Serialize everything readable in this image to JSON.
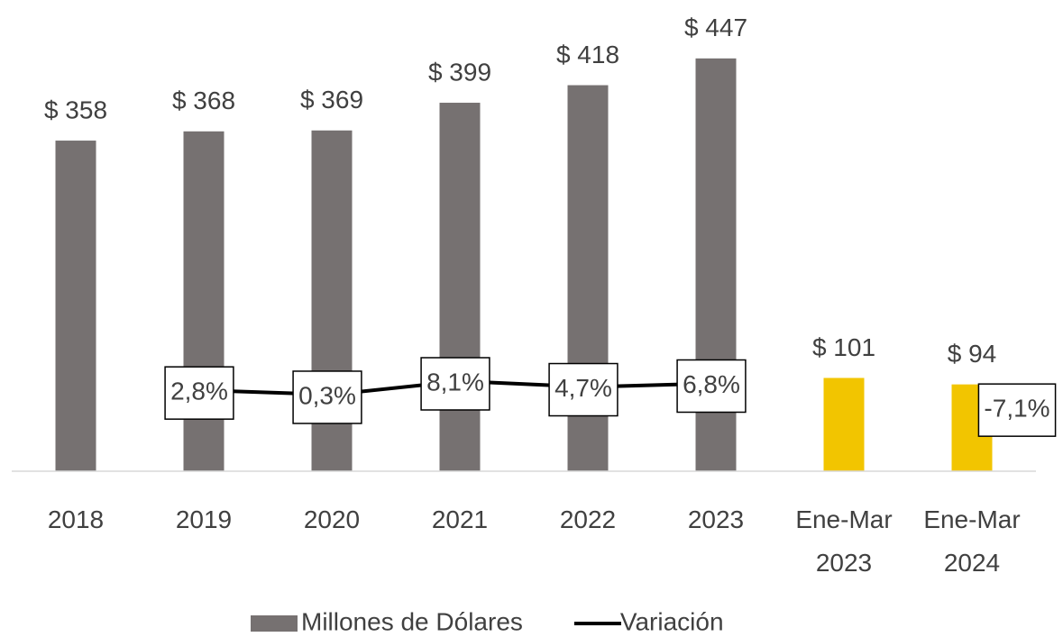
{
  "chart_data": {
    "type": "bar",
    "categories": [
      "2018",
      "2019",
      "2020",
      "2021",
      "2022",
      "2023",
      "Ene-Mar 2023",
      "Ene-Mar 2024"
    ],
    "series": [
      {
        "name": "Millones de Dólares",
        "color": "#767171",
        "colors": [
          "#767171",
          "#767171",
          "#767171",
          "#767171",
          "#767171",
          "#767171",
          "#f2c500",
          "#f2c500"
        ],
        "values": [
          358,
          368,
          369,
          399,
          418,
          447,
          101,
          94
        ],
        "value_labels": [
          "$ 358",
          "$ 368",
          "$ 369",
          "$ 399",
          "$ 418",
          "$ 447",
          "$ 101",
          "$ 94"
        ]
      },
      {
        "name": "Variación",
        "type": "line",
        "axis": "y2",
        "color": "#000000",
        "values": [
          null,
          2.8,
          0.3,
          8.1,
          4.7,
          6.8,
          null,
          -7.1
        ],
        "value_labels": [
          null,
          "2,8%",
          "0,3%",
          "8,1%",
          "4,7%",
          "6,8%",
          null,
          "-7,1%"
        ]
      }
    ],
    "ylim": [
      0,
      500
    ],
    "y2lim": [
      -44,
      223
    ],
    "grid": false,
    "legend": "bottom"
  }
}
